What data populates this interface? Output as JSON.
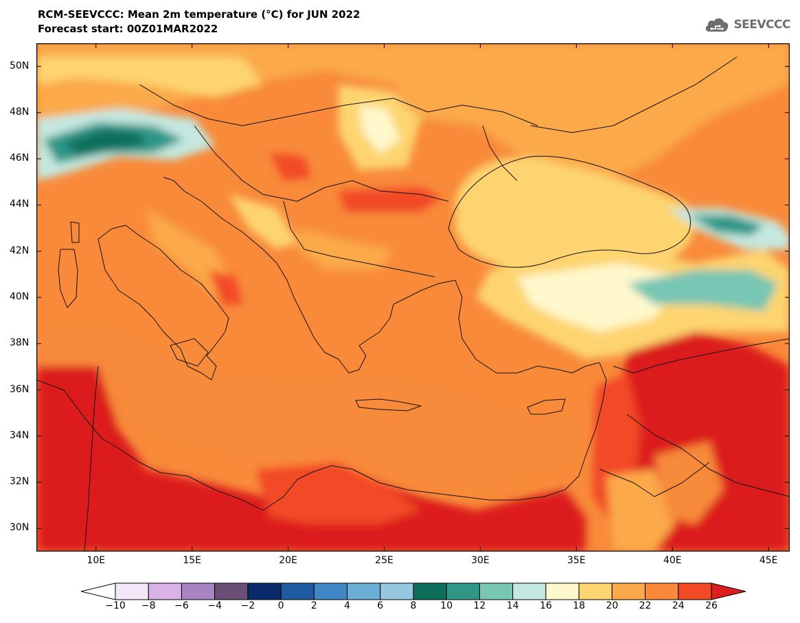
{
  "header": {
    "title_line1": "RCM-SEEVCCC: Mean 2m temperature (°C) for JUN 2022",
    "title_line2": "Forecast start: 00Z01MAR2022"
  },
  "logo": {
    "text": "SEEVCCC",
    "icon": "cloud-icon",
    "color": "#6d6d6d"
  },
  "map": {
    "variable": "Mean 2m temperature",
    "units": "°C",
    "lat_ticks": [
      "50N",
      "48N",
      "46N",
      "44N",
      "42N",
      "40N",
      "38N",
      "36N",
      "34N",
      "32N",
      "30N"
    ],
    "lon_ticks": [
      "10E",
      "15E",
      "20E",
      "25E",
      "30E",
      "35E",
      "40E",
      "45E"
    ],
    "lat_values": [
      50,
      48,
      46,
      44,
      42,
      40,
      38,
      36,
      34,
      32,
      30
    ],
    "lon_values": [
      10,
      15,
      20,
      25,
      30,
      35,
      40,
      45
    ]
  },
  "colorbar": {
    "labels": [
      "−10",
      "−8",
      "−6",
      "−4",
      "−2",
      "0",
      "2",
      "4",
      "6",
      "8",
      "10",
      "12",
      "14",
      "16",
      "18",
      "20",
      "22",
      "24",
      "26"
    ],
    "values": [
      -10,
      -8,
      -6,
      -4,
      -2,
      0,
      2,
      4,
      6,
      8,
      10,
      12,
      14,
      16,
      18,
      20,
      22,
      24,
      26
    ],
    "colors": [
      "#f2e6f7",
      "#d9b3e6",
      "#a885c2",
      "#6b4e73",
      "#0a2b6b",
      "#1f5aa0",
      "#3f88c5",
      "#6aaed6",
      "#96c9e0",
      "#0e6e5c",
      "#2f9688",
      "#78c6b4",
      "#c4e8e0",
      "#fff8cc",
      "#fdd46f",
      "#fba94a",
      "#f88a3a",
      "#f24a26"
    ],
    "under_color": "#ffffff",
    "over_color": "#dc1e1e"
  }
}
